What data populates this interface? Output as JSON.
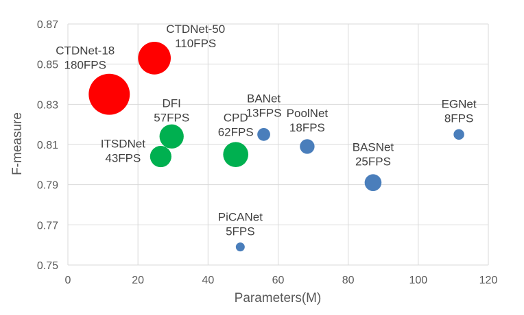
{
  "chart_data": {
    "type": "scatter",
    "xlabel": "Parameters(M)",
    "ylabel": "F-measure",
    "xlim": [
      0,
      120
    ],
    "ylim": [
      0.75,
      0.87
    ],
    "xticks": [
      0,
      20,
      40,
      60,
      80,
      100,
      120
    ],
    "xtick_labels": [
      "0",
      "20",
      "40",
      "60",
      "80",
      "100",
      "120"
    ],
    "yticks": [
      0.75,
      0.77,
      0.79,
      0.81,
      0.83,
      0.85,
      0.87
    ],
    "ytick_labels": [
      "0.75",
      "0.77",
      "0.79",
      "0.81",
      "0.83",
      "0.85",
      "0.87"
    ],
    "grid": true,
    "note": "bubble size proportional to FPS",
    "colors": {
      "ctdnet": "#ff0000",
      "green": "#00b050",
      "blue": "#4a7ebb"
    },
    "points": [
      {
        "name": "CTDNet-18",
        "fps_label": "180FPS",
        "fps": 180,
        "x": 11.8,
        "y": 0.835,
        "group": "ctdnet"
      },
      {
        "name": "CTDNet-50",
        "fps_label": "110FPS",
        "fps": 110,
        "x": 24.7,
        "y": 0.853,
        "group": "ctdnet"
      },
      {
        "name": "DFI",
        "fps_label": "57FPS",
        "fps": 57,
        "x": 29.6,
        "y": 0.814,
        "group": "green"
      },
      {
        "name": "ITSDNet",
        "fps_label": "43FPS",
        "fps": 43,
        "x": 26.5,
        "y": 0.804,
        "group": "green"
      },
      {
        "name": "CPD",
        "fps_label": "62FPS",
        "fps": 62,
        "x": 47.9,
        "y": 0.805,
        "group": "green"
      },
      {
        "name": "BANet",
        "fps_label": "13FPS",
        "fps": 13,
        "x": 55.9,
        "y": 0.815,
        "group": "blue"
      },
      {
        "name": "PoolNet",
        "fps_label": "18FPS",
        "fps": 18,
        "x": 68.3,
        "y": 0.809,
        "group": "blue"
      },
      {
        "name": "BASNet",
        "fps_label": "25FPS",
        "fps": 25,
        "x": 87.1,
        "y": 0.791,
        "group": "blue"
      },
      {
        "name": "PiCANet",
        "fps_label": "5FPS",
        "fps": 5,
        "x": 49.2,
        "y": 0.759,
        "group": "blue"
      },
      {
        "name": "EGNet",
        "fps_label": "8FPS",
        "fps": 8,
        "x": 111.6,
        "y": 0.815,
        "group": "blue"
      }
    ]
  }
}
